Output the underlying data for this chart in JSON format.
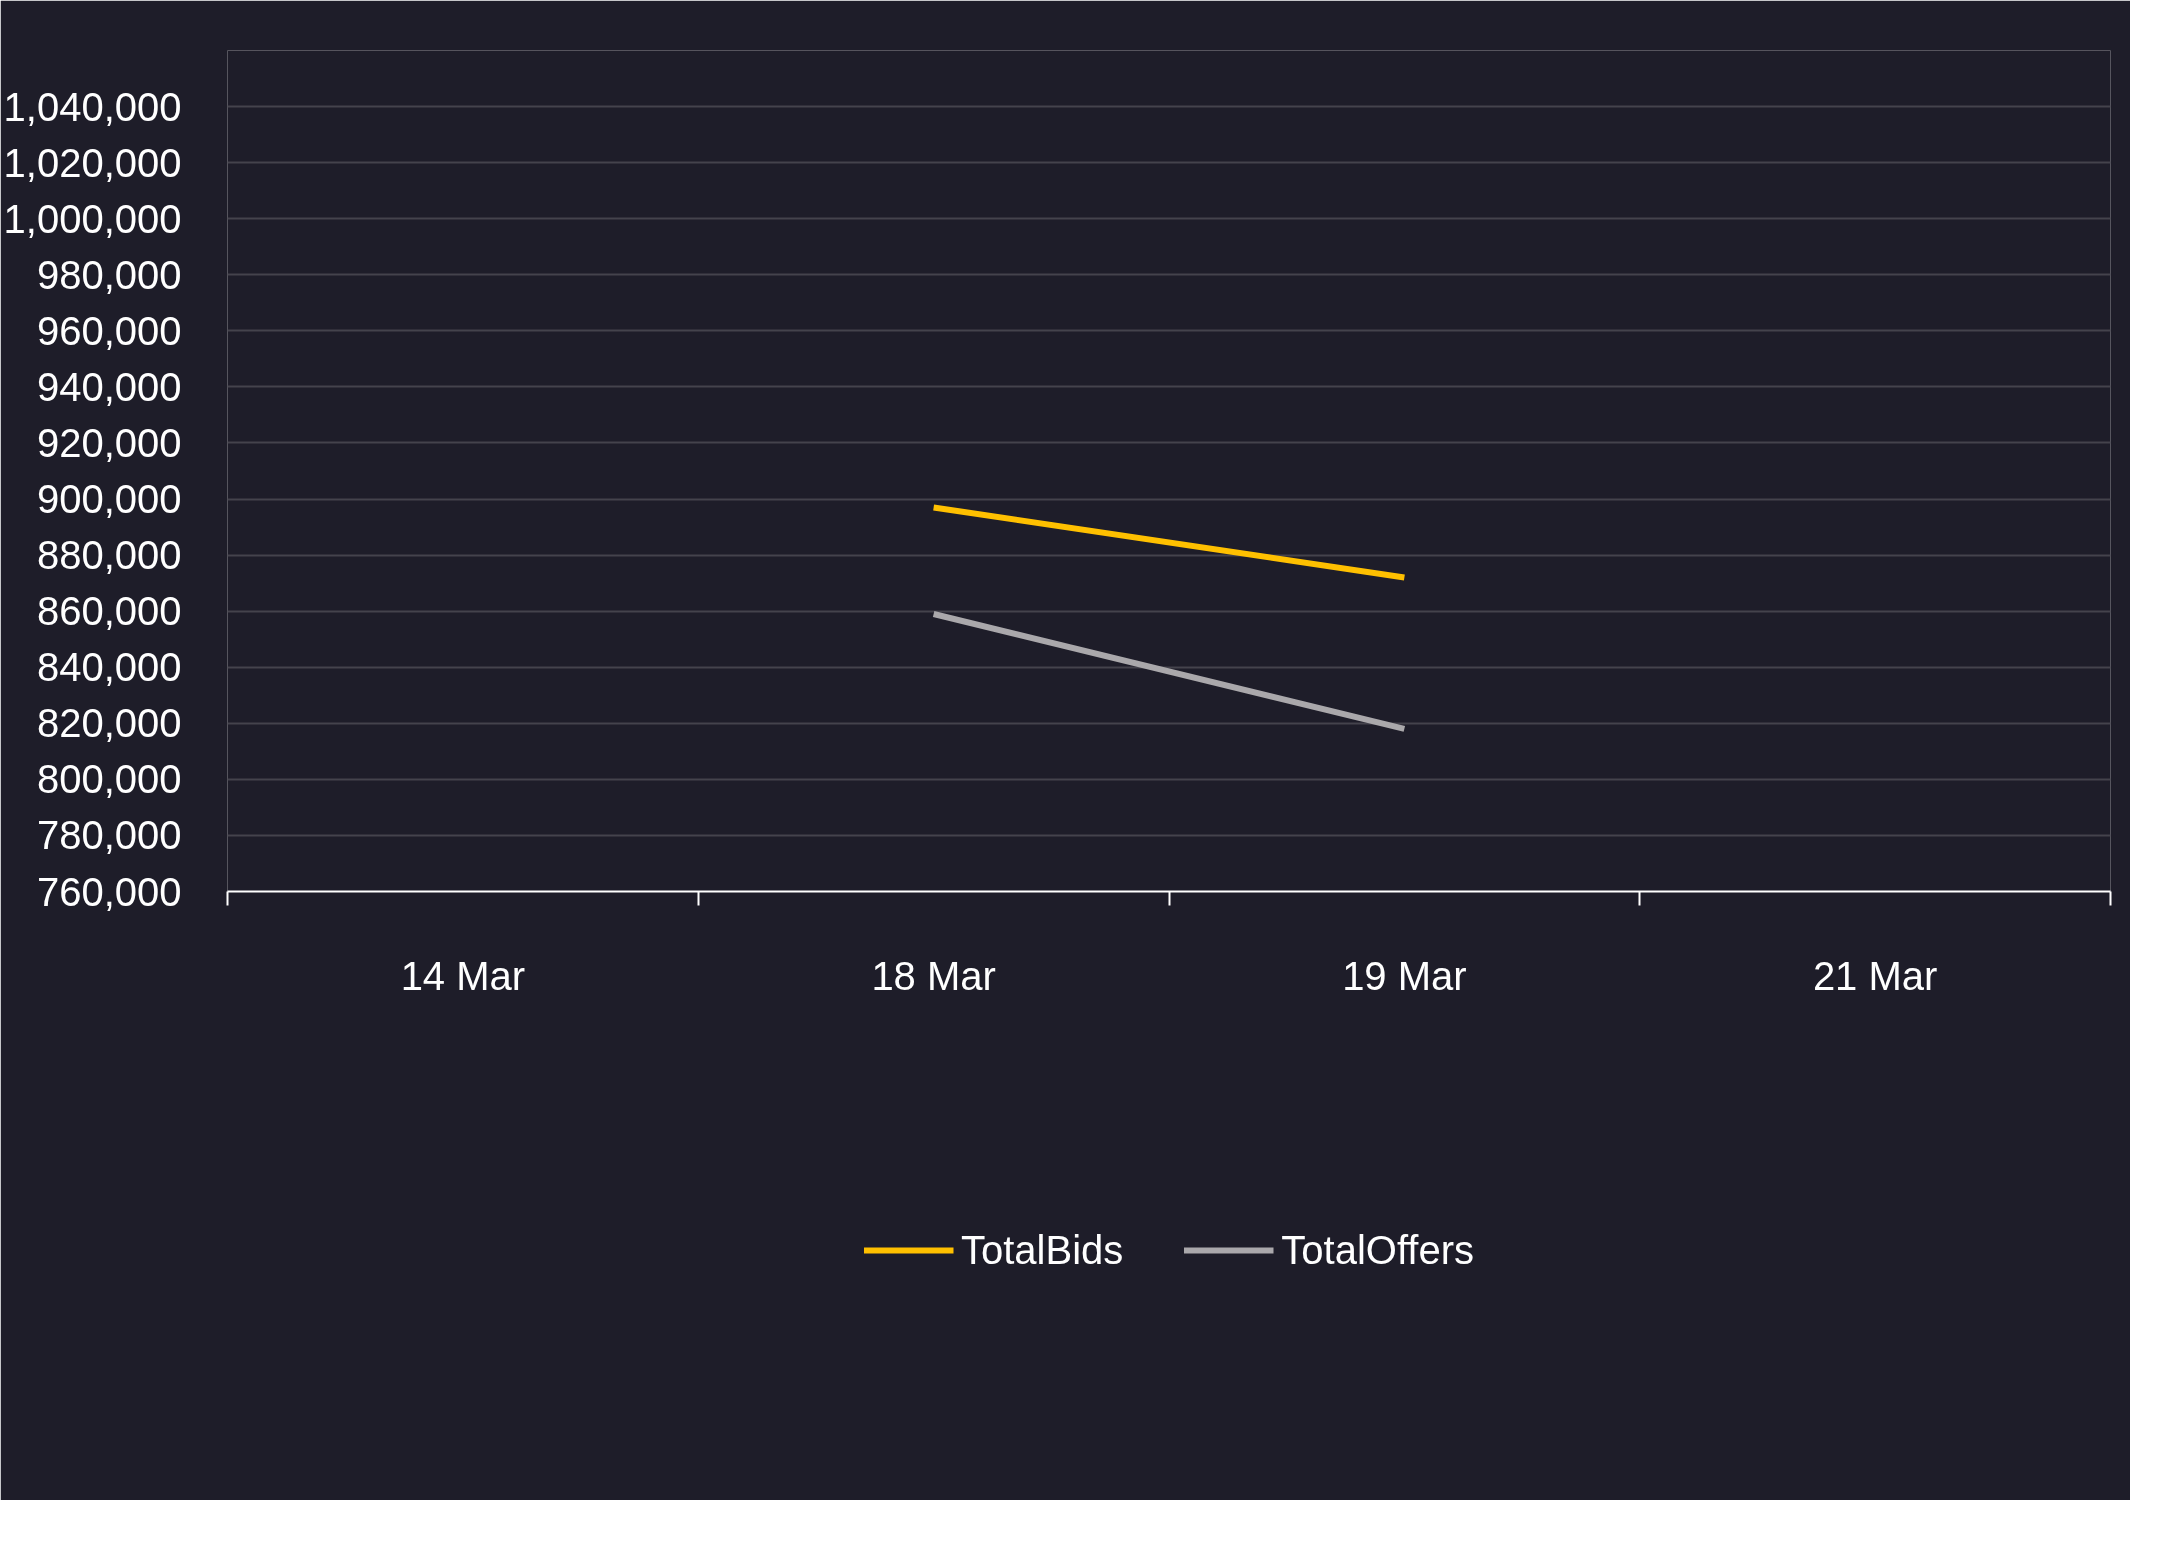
{
  "chart_data": {
    "type": "line",
    "categories": [
      "14 Mar",
      "18 Mar",
      "19 Mar",
      "21 Mar"
    ],
    "series": [
      {
        "name": "TotalBids",
        "color": "#ffc000",
        "values": [
          null,
          897000,
          872000,
          null
        ]
      },
      {
        "name": "TotalOffers",
        "color": "#aaa8ab",
        "values": [
          null,
          859000,
          818000,
          null
        ]
      }
    ],
    "ylim": [
      760000,
      1060000
    ],
    "yticks": [
      {
        "value": 760000,
        "label": "760,000"
      },
      {
        "value": 780000,
        "label": "780,000"
      },
      {
        "value": 800000,
        "label": "800,000"
      },
      {
        "value": 820000,
        "label": "820,000"
      },
      {
        "value": 840000,
        "label": "840,000"
      },
      {
        "value": 860000,
        "label": "860,000"
      },
      {
        "value": 880000,
        "label": "880,000"
      },
      {
        "value": 900000,
        "label": "900,000"
      },
      {
        "value": 920000,
        "label": "920,000"
      },
      {
        "value": 940000,
        "label": "940,000"
      },
      {
        "value": 960000,
        "label": "960,000"
      },
      {
        "value": 980000,
        "label": "980,000"
      },
      {
        "value": 1000000,
        "label": "1,000,000"
      },
      {
        "value": 1020000,
        "label": "1,020,000"
      },
      {
        "value": 1040000,
        "label": "1,040,000"
      }
    ],
    "grid": "y",
    "legend": "bottom",
    "marker": "none",
    "line_style": "solid"
  }
}
